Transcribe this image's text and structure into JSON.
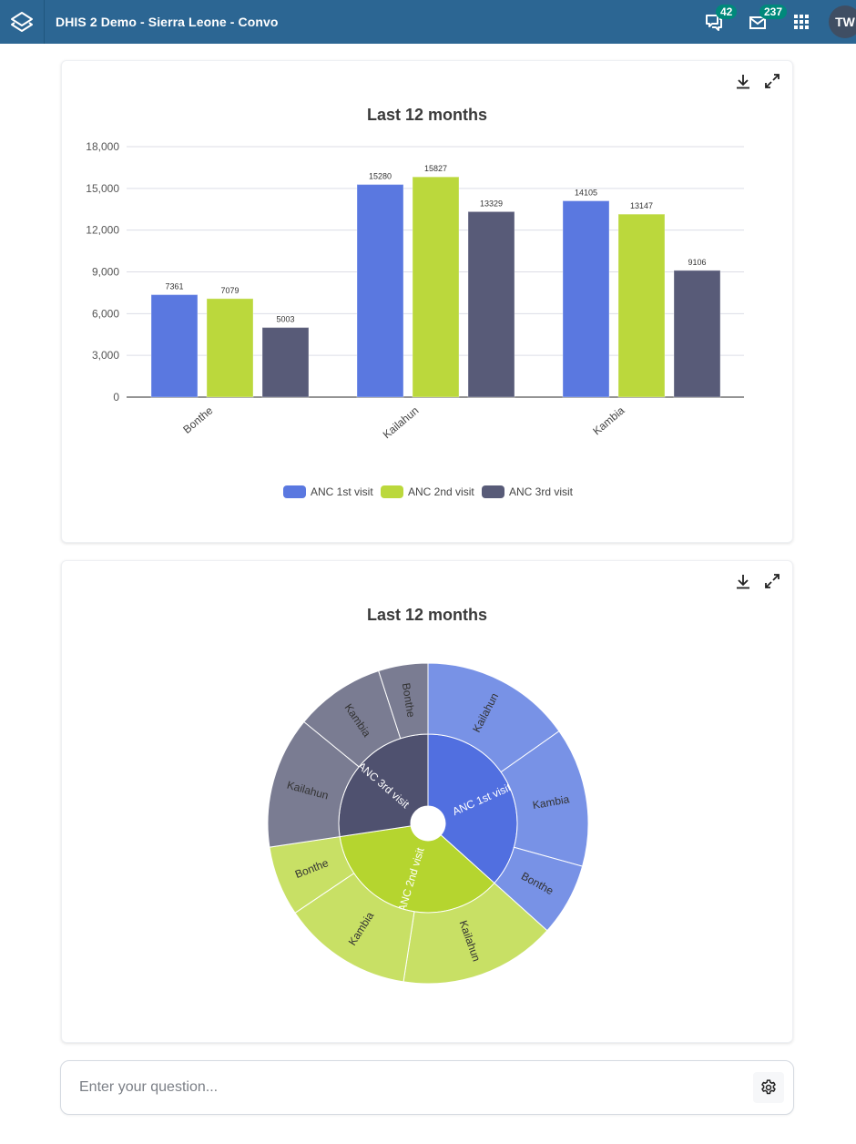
{
  "header": {
    "app_title": "DHIS 2 Demo - Sierra Leone - Convo",
    "messages_badge": "42",
    "inbox_badge": "237",
    "avatar_initials": "TW",
    "icons": [
      "app-logo-icon",
      "chat-icon",
      "mail-icon",
      "apps-grid-icon"
    ]
  },
  "cards": [
    {
      "title": "Last 12 months",
      "actions": [
        "download-icon",
        "fullscreen-icon"
      ]
    },
    {
      "title": "Last 12 months",
      "actions": [
        "download-icon",
        "fullscreen-icon"
      ]
    }
  ],
  "question": {
    "placeholder": "Enter your question...",
    "value": "",
    "settings_icon": "gear-icon"
  },
  "colors": {
    "header_bg": "#2c6693",
    "badge_bg": "#00897b",
    "series_1": "#5a78e0",
    "series_2": "#bbd83c",
    "series_3": "#585b78"
  },
  "chart_data": [
    {
      "type": "bar",
      "title": "Last 12 months",
      "categories": [
        "Bonthe",
        "Kailahun",
        "Kambia"
      ],
      "series": [
        {
          "name": "ANC 1st visit",
          "values": [
            7361,
            15280,
            14105
          ],
          "color": "#5a78e0"
        },
        {
          "name": "ANC 2nd visit",
          "values": [
            7079,
            15827,
            13147
          ],
          "color": "#bbd83c"
        },
        {
          "name": "ANC 3rd visit",
          "values": [
            5003,
            13329,
            9106
          ],
          "color": "#585b78"
        }
      ],
      "yticks": [
        "0",
        "3,000",
        "6,000",
        "9,000",
        "12,000",
        "15,000",
        "18,000"
      ],
      "ylim": [
        0,
        18000
      ],
      "xlabel": "",
      "ylabel": "",
      "grid": true,
      "legend_position": "bottom",
      "data_labels": true
    },
    {
      "type": "sunburst",
      "title": "Last 12 months",
      "inner": [
        {
          "name": "ANC 1st visit",
          "value": 36746,
          "color": "#516fe0"
        },
        {
          "name": "ANC 2nd visit",
          "value": 36053,
          "color": "#b5d52f"
        },
        {
          "name": "ANC 3rd visit",
          "value": 27438,
          "color": "#4f516f"
        }
      ],
      "outer": [
        {
          "parent": "ANC 1st visit",
          "name": "Kailahun",
          "value": 15280,
          "color": "#7892e6"
        },
        {
          "parent": "ANC 1st visit",
          "name": "Kambia",
          "value": 14105,
          "color": "#7892e6"
        },
        {
          "parent": "ANC 1st visit",
          "name": "Bonthe",
          "value": 7361,
          "color": "#7892e6"
        },
        {
          "parent": "ANC 2nd visit",
          "name": "Kailahun",
          "value": 15827,
          "color": "#c8e065"
        },
        {
          "parent": "ANC 2nd visit",
          "name": "Kambia",
          "value": 13147,
          "color": "#c8e065"
        },
        {
          "parent": "ANC 2nd visit",
          "name": "Bonthe",
          "value": 7079,
          "color": "#c8e065"
        },
        {
          "parent": "ANC 3rd visit",
          "name": "Kailahun",
          "value": 13329,
          "color": "#7a7c92"
        },
        {
          "parent": "ANC 3rd visit",
          "name": "Kambia",
          "value": 9106,
          "color": "#7a7c92"
        },
        {
          "parent": "ANC 3rd visit",
          "name": "Bonthe",
          "value": 5003,
          "color": "#7a7c92"
        }
      ]
    }
  ]
}
